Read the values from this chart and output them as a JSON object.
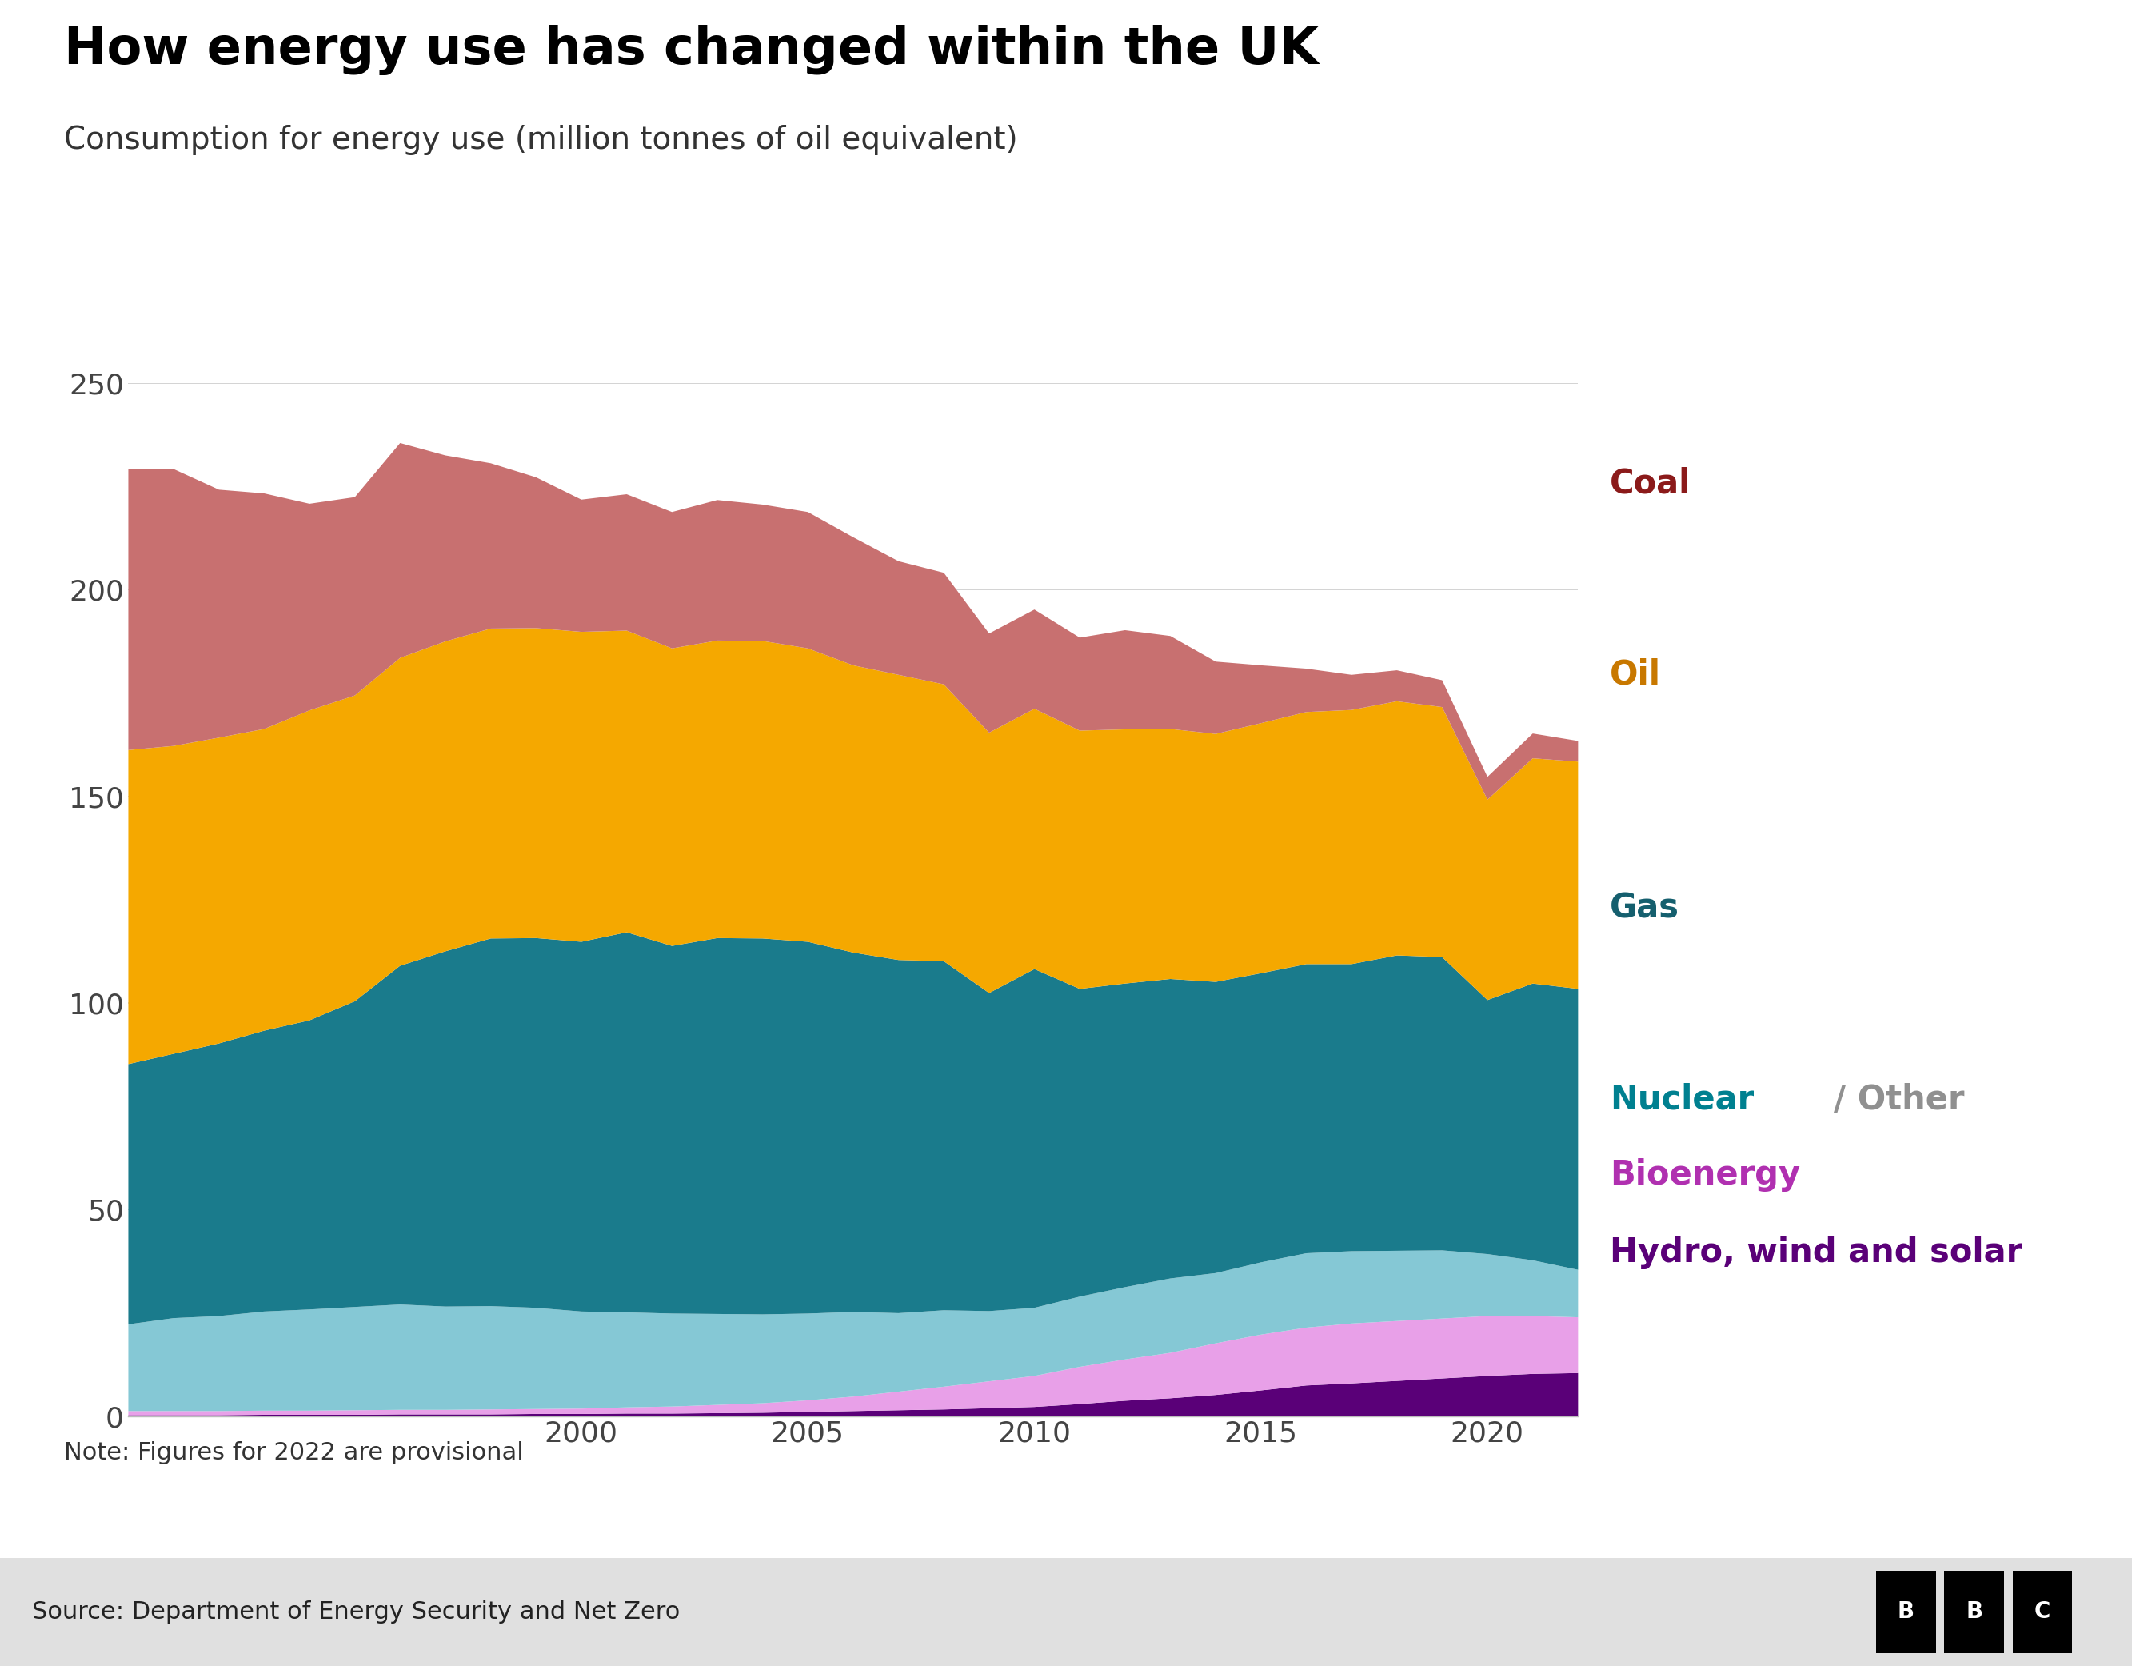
{
  "title": "How energy use has changed within the UK",
  "subtitle": "Consumption for energy use (million tonnes of oil equivalent)",
  "note": "Note: Figures for 2022 are provisional",
  "source": "Source: Department of Energy Security and Net Zero",
  "years": [
    1990,
    1991,
    1992,
    1993,
    1994,
    1995,
    1996,
    1997,
    1998,
    1999,
    2000,
    2001,
    2002,
    2003,
    2004,
    2005,
    2006,
    2007,
    2008,
    2009,
    2010,
    2011,
    2012,
    2013,
    2014,
    2015,
    2016,
    2017,
    2018,
    2019,
    2020,
    2021,
    2022
  ],
  "hydro_wind_solar": [
    0.3,
    0.3,
    0.3,
    0.4,
    0.4,
    0.4,
    0.5,
    0.5,
    0.5,
    0.6,
    0.6,
    0.7,
    0.7,
    0.8,
    0.9,
    1.1,
    1.3,
    1.5,
    1.7,
    2.0,
    2.3,
    3.0,
    3.8,
    4.4,
    5.2,
    6.3,
    7.5,
    8.0,
    8.6,
    9.2,
    9.8,
    10.3,
    10.5
  ],
  "bioenergy": [
    1.0,
    1.0,
    1.0,
    1.0,
    1.0,
    1.1,
    1.1,
    1.1,
    1.2,
    1.2,
    1.3,
    1.5,
    1.7,
    2.0,
    2.3,
    2.8,
    3.5,
    4.5,
    5.5,
    6.5,
    7.5,
    9.0,
    10.0,
    11.0,
    12.5,
    13.5,
    14.0,
    14.5,
    14.5,
    14.5,
    14.5,
    14.0,
    13.5
  ],
  "nuclear_other": [
    21.0,
    22.5,
    23.0,
    24.0,
    24.5,
    25.0,
    25.5,
    25.0,
    25.0,
    24.5,
    23.5,
    23.0,
    22.5,
    22.0,
    21.5,
    21.0,
    20.5,
    19.0,
    18.5,
    17.0,
    16.5,
    17.0,
    17.5,
    18.0,
    17.0,
    17.5,
    18.0,
    17.5,
    17.0,
    16.5,
    15.0,
    13.5,
    11.5
  ],
  "gas": [
    63.0,
    64.0,
    66.0,
    68.0,
    70.0,
    74.0,
    82.0,
    86.0,
    89.0,
    89.5,
    89.5,
    92.0,
    89.0,
    91.0,
    91.0,
    90.0,
    87.0,
    85.5,
    84.5,
    77.0,
    82.0,
    74.5,
    73.5,
    72.5,
    70.5,
    70.0,
    70.0,
    69.5,
    71.5,
    71.0,
    61.5,
    67.0,
    68.0
  ],
  "oil": [
    76.0,
    74.5,
    74.0,
    73.0,
    75.0,
    74.0,
    74.5,
    75.0,
    75.0,
    75.0,
    75.0,
    73.0,
    72.0,
    72.0,
    72.0,
    71.0,
    69.5,
    69.0,
    67.0,
    63.0,
    63.0,
    62.5,
    61.5,
    60.5,
    60.0,
    60.5,
    61.0,
    61.5,
    61.5,
    60.5,
    48.5,
    54.5,
    55.0
  ],
  "coal": [
    68.0,
    67.0,
    60.0,
    57.0,
    50.0,
    48.0,
    52.0,
    45.0,
    40.0,
    36.5,
    32.0,
    33.0,
    33.0,
    34.0,
    33.0,
    33.0,
    31.0,
    27.5,
    27.0,
    24.0,
    24.0,
    22.5,
    24.0,
    22.5,
    17.5,
    14.0,
    10.5,
    8.5,
    7.5,
    6.5,
    5.5,
    6.0,
    5.0
  ],
  "area_colors": {
    "hydro_wind_solar": "#5A0078",
    "bioenergy": "#E8A0E8",
    "nuclear_other": "#85C8D5",
    "gas": "#1A7B8C",
    "oil": "#F5A800",
    "coal": "#C87070"
  },
  "label_colors": {
    "Coal": "#8B1A1A",
    "Oil": "#C87800",
    "Gas": "#155F6E",
    "Nuclear_teal": "#008090",
    "Other_gray": "#909090",
    "Bioenergy": "#B030B0",
    "Hydro": "#5A0078"
  },
  "ylim": [
    0,
    250
  ],
  "yticks": [
    0,
    50,
    100,
    150,
    200,
    250
  ],
  "xticks": [
    2000,
    2005,
    2010,
    2015,
    2020
  ],
  "background_color": "#ffffff",
  "title_fontsize": 46,
  "subtitle_fontsize": 28,
  "tick_fontsize": 26,
  "legend_fontsize": 30,
  "note_fontsize": 22,
  "source_fontsize": 22
}
